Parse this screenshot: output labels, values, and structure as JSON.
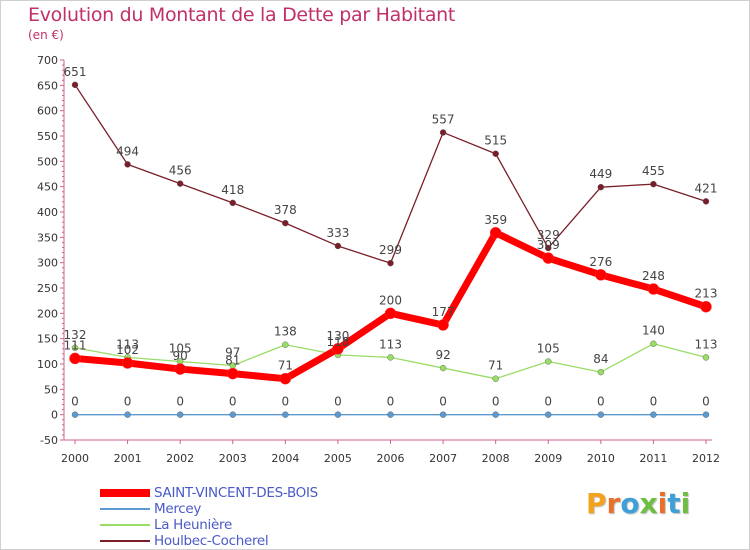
{
  "chart_data": {
    "type": "line",
    "title": "Evolution du Montant de la Dette par Habitant",
    "subtitle": "(en €)",
    "xlabel": "",
    "ylabel": "",
    "x": [
      "2000",
      "2001",
      "2002",
      "2003",
      "2004",
      "2005",
      "2006",
      "2007",
      "2008",
      "2009",
      "2010",
      "2011",
      "2012"
    ],
    "ylim": [
      -50,
      700
    ],
    "yticks": [
      -50,
      0,
      50,
      100,
      150,
      200,
      250,
      300,
      350,
      400,
      450,
      500,
      550,
      600,
      650,
      700
    ],
    "grid": false,
    "legend_position": "bottom-left",
    "series": [
      {
        "name": "SAINT-VINCENT-DES-BOIS",
        "color": "#ff0000",
        "values": [
          111,
          102,
          90,
          81,
          71,
          130,
          200,
          177,
          359,
          309,
          276,
          248,
          213
        ]
      },
      {
        "name": "Mercey",
        "color": "#5b9ad0",
        "values": [
          0,
          0,
          0,
          0,
          0,
          0,
          0,
          0,
          0,
          0,
          0,
          0,
          0
        ]
      },
      {
        "name": "La Heunière",
        "color": "#99dd66",
        "values": [
          132,
          113,
          105,
          97,
          138,
          118,
          113,
          92,
          71,
          105,
          84,
          140,
          113
        ]
      },
      {
        "name": "Houlbec-Cocherel",
        "color": "#7a1f2a",
        "values": [
          651,
          494,
          456,
          418,
          378,
          333,
          299,
          557,
          515,
          329,
          449,
          455,
          421
        ]
      }
    ]
  },
  "logo": {
    "text": "Proxiti",
    "colors": [
      "#f2a21c",
      "#e8702a",
      "#3fa0d8",
      "#6fbe44",
      "#e8702a",
      "#3fa0d8",
      "#6fbe44"
    ]
  }
}
